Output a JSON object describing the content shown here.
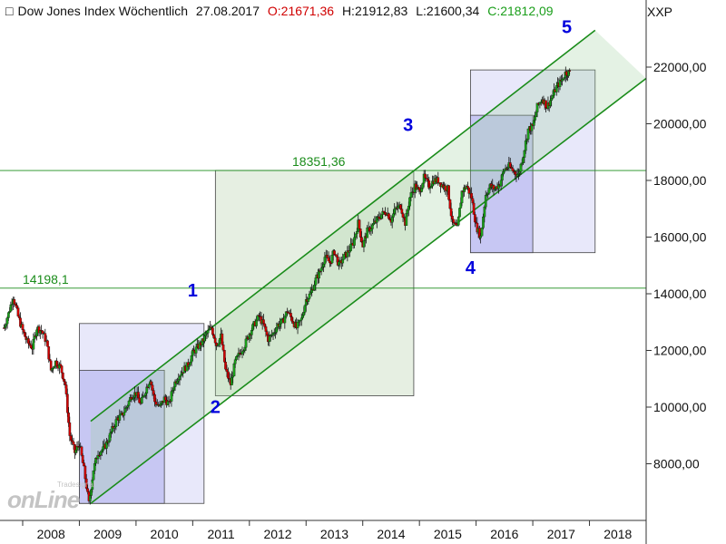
{
  "header": {
    "title": "Dow Jones Index Wöchentlich",
    "date": "27.08.2017",
    "open": "O:21671,36",
    "high": "H:21912,83",
    "low": "L:21600,34",
    "close": "C:21812,09",
    "symbol": "XXP"
  },
  "logo": {
    "brand": "onLine",
    "provider": "Tradesignal"
  },
  "colors": {
    "up": "#1a9e1a",
    "down": "#d00000",
    "channel": "#1a8c1a",
    "blue_box": "#c8c8f0",
    "green_box": "#cfe3c8",
    "wave_label": "#0000dd"
  },
  "chart_data": {
    "type": "candlestick",
    "x_ticks": [
      "2008",
      "2009",
      "2010",
      "2011",
      "2012",
      "2013",
      "2014",
      "2015",
      "2016",
      "2017",
      "2018"
    ],
    "y_ticks": [
      "8000,00",
      "10000,00",
      "12000,00",
      "14000,00",
      "16000,00",
      "18000,00",
      "20000,00",
      "22000,00"
    ],
    "ylim": [
      6000,
      23600
    ],
    "xlim": [
      2007.6,
      2019.0
    ],
    "grid": false,
    "levels": [
      {
        "value": 14198.1,
        "label": "14198,1"
      },
      {
        "value": 18351.36,
        "label": "18351,36"
      }
    ],
    "wave_labels": [
      {
        "text": "1",
        "x": 2011.0,
        "y": 13900
      },
      {
        "text": "2",
        "x": 2011.4,
        "y": 9800
      },
      {
        "text": "3",
        "x": 2014.8,
        "y": 19750
      },
      {
        "text": "4",
        "x": 2015.9,
        "y": 14700
      },
      {
        "text": "5",
        "x": 2017.6,
        "y": 23200
      }
    ],
    "channel": {
      "upper": [
        [
          2009.2,
          9500
        ],
        [
          2018.1,
          23300
        ]
      ],
      "lower": [
        [
          2009.2,
          6600
        ],
        [
          2019.0,
          21600
        ]
      ],
      "mid": [
        [
          2009.2,
          8000
        ],
        [
          2018.5,
          22400
        ]
      ]
    },
    "boxes": [
      {
        "kind": "blue",
        "x": [
          2009.0,
          2011.2
        ],
        "y": [
          6600,
          12950
        ]
      },
      {
        "kind": "blue_dark",
        "x": [
          2009.0,
          2010.5
        ],
        "y": [
          6600,
          11300
        ]
      },
      {
        "kind": "green",
        "x": [
          2011.4,
          2014.9
        ],
        "y": [
          10400,
          18351.36
        ]
      },
      {
        "kind": "blue",
        "x": [
          2015.9,
          2018.1
        ],
        "y": [
          15450,
          21900
        ]
      },
      {
        "kind": "blue_dark",
        "x": [
          2015.9,
          2017.0
        ],
        "y": [
          15450,
          20300
        ]
      }
    ],
    "series": [
      {
        "name": "",
        "points": [
          [
            2007.67,
            12800
          ],
          [
            2007.75,
            13300
          ],
          [
            2007.83,
            13900
          ],
          [
            2007.92,
            13200
          ],
          [
            2008.0,
            12700
          ],
          [
            2008.08,
            12300
          ],
          [
            2008.17,
            12100
          ],
          [
            2008.25,
            12800
          ],
          [
            2008.33,
            12700
          ],
          [
            2008.42,
            12300
          ],
          [
            2008.5,
            11300
          ],
          [
            2008.58,
            11600
          ],
          [
            2008.67,
            11400
          ],
          [
            2008.75,
            10800
          ],
          [
            2008.83,
            9000
          ],
          [
            2008.92,
            8400
          ],
          [
            2009.0,
            8700
          ],
          [
            2009.08,
            7800
          ],
          [
            2009.17,
            6600
          ],
          [
            2009.25,
            7800
          ],
          [
            2009.33,
            8400
          ],
          [
            2009.42,
            8500
          ],
          [
            2009.5,
            8800
          ],
          [
            2009.58,
            9200
          ],
          [
            2009.67,
            9600
          ],
          [
            2009.75,
            9700
          ],
          [
            2009.83,
            10000
          ],
          [
            2009.92,
            10400
          ],
          [
            2010.0,
            10500
          ],
          [
            2010.08,
            10100
          ],
          [
            2010.17,
            10600
          ],
          [
            2010.25,
            11000
          ],
          [
            2010.33,
            10200
          ],
          [
            2010.42,
            10000
          ],
          [
            2010.5,
            10300
          ],
          [
            2010.58,
            10100
          ],
          [
            2010.67,
            10800
          ],
          [
            2010.75,
            11100
          ],
          [
            2010.83,
            11300
          ],
          [
            2010.92,
            11500
          ],
          [
            2011.0,
            11900
          ],
          [
            2011.08,
            12100
          ],
          [
            2011.17,
            12300
          ],
          [
            2011.25,
            12600
          ],
          [
            2011.33,
            12800
          ],
          [
            2011.42,
            12200
          ],
          [
            2011.5,
            12500
          ],
          [
            2011.58,
            11300
          ],
          [
            2011.67,
            10800
          ],
          [
            2011.75,
            11600
          ],
          [
            2011.83,
            11900
          ],
          [
            2011.92,
            12200
          ],
          [
            2012.0,
            12600
          ],
          [
            2012.08,
            12900
          ],
          [
            2012.17,
            13200
          ],
          [
            2012.25,
            12900
          ],
          [
            2012.33,
            12400
          ],
          [
            2012.42,
            12600
          ],
          [
            2012.5,
            12900
          ],
          [
            2012.58,
            13000
          ],
          [
            2012.67,
            13400
          ],
          [
            2012.75,
            13100
          ],
          [
            2012.83,
            12800
          ],
          [
            2012.92,
            13100
          ],
          [
            2013.0,
            13800
          ],
          [
            2013.08,
            14000
          ],
          [
            2013.17,
            14500
          ],
          [
            2013.25,
            14800
          ],
          [
            2013.33,
            15300
          ],
          [
            2013.42,
            15100
          ],
          [
            2013.5,
            15500
          ],
          [
            2013.58,
            15000
          ],
          [
            2013.67,
            15300
          ],
          [
            2013.75,
            15500
          ],
          [
            2013.83,
            15800
          ],
          [
            2013.92,
            16500
          ],
          [
            2014.0,
            15700
          ],
          [
            2014.08,
            16200
          ],
          [
            2014.17,
            16400
          ],
          [
            2014.25,
            16600
          ],
          [
            2014.33,
            16800
          ],
          [
            2014.42,
            16900
          ],
          [
            2014.5,
            16600
          ],
          [
            2014.58,
            17000
          ],
          [
            2014.67,
            17100
          ],
          [
            2014.75,
            16500
          ],
          [
            2014.83,
            17400
          ],
          [
            2014.92,
            17800
          ],
          [
            2015.0,
            17600
          ],
          [
            2015.08,
            18100
          ],
          [
            2015.17,
            17800
          ],
          [
            2015.25,
            18000
          ],
          [
            2015.33,
            18000
          ],
          [
            2015.42,
            17800
          ],
          [
            2015.5,
            17700
          ],
          [
            2015.58,
            16500
          ],
          [
            2015.67,
            16300
          ],
          [
            2015.75,
            17600
          ],
          [
            2015.83,
            17800
          ],
          [
            2015.92,
            17400
          ],
          [
            2016.0,
            16400
          ],
          [
            2016.08,
            16000
          ],
          [
            2016.17,
            17500
          ],
          [
            2016.25,
            17800
          ],
          [
            2016.33,
            17700
          ],
          [
            2016.42,
            17900
          ],
          [
            2016.5,
            18400
          ],
          [
            2016.58,
            18500
          ],
          [
            2016.67,
            18300
          ],
          [
            2016.75,
            18200
          ],
          [
            2016.83,
            18900
          ],
          [
            2016.92,
            19800
          ],
          [
            2017.0,
            19900
          ],
          [
            2017.08,
            20600
          ],
          [
            2017.17,
            20900
          ],
          [
            2017.25,
            20600
          ],
          [
            2017.33,
            20900
          ],
          [
            2017.42,
            21300
          ],
          [
            2017.5,
            21500
          ],
          [
            2017.58,
            21800
          ],
          [
            2017.65,
            21812
          ]
        ]
      }
    ]
  }
}
